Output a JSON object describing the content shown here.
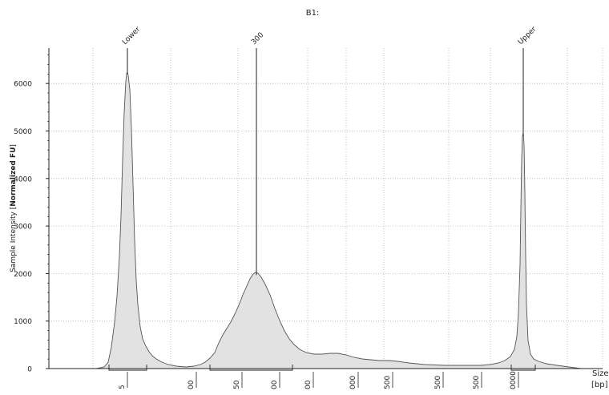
{
  "chart_data": {
    "type": "area",
    "title": "B1:",
    "ylabel_prefix": "Sample Intensity [",
    "ylabel_bold": "Normalized FU",
    "ylabel_suffix": "]",
    "xlabel_line1": "Size",
    "xlabel_line2": "[bp]",
    "y_ticks": [
      0,
      1000,
      2000,
      3000,
      4000,
      5000,
      6000
    ],
    "ylim": [
      0,
      6800
    ],
    "grid": true,
    "x_tick_labels": [
      "5",
      "00",
      "50",
      "00",
      "00",
      "000",
      "500",
      "500",
      "500",
      "0000"
    ],
    "peak_labels": [
      {
        "text": "Lower",
        "peak": 6250
      },
      {
        "text": "300",
        "peak": 2020
      },
      {
        "text": "Upper",
        "peak": 4950
      }
    ],
    "colors": {
      "fill": "#e2e2e2",
      "line": "#555555",
      "grid": "#b4b4b4",
      "marker": "#222222"
    }
  }
}
